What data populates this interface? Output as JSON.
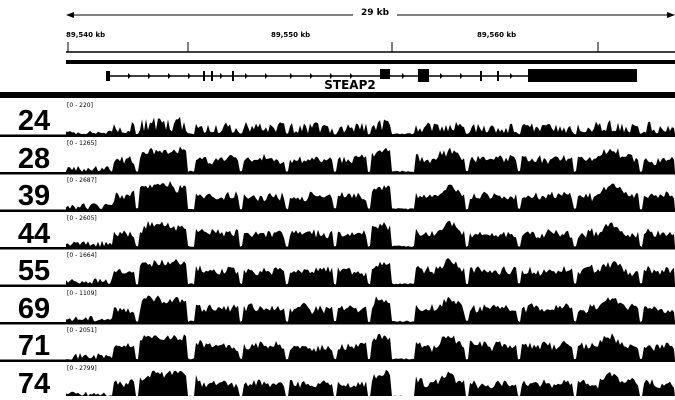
{
  "ruler": {
    "span_label": "29 kb",
    "ticks": [
      "89,540 kb",
      "89,550 kb",
      "89,560 kb"
    ]
  },
  "gene": {
    "name": "STEAP2"
  },
  "tracks": [
    {
      "label": "24",
      "range": "[0 - 220]",
      "seed": 24,
      "density": 0.55
    },
    {
      "label": "28",
      "range": "[0 - 1265]",
      "seed": 28,
      "density": 0.85
    },
    {
      "label": "39",
      "range": "[0 - 2687]",
      "seed": 39,
      "density": 0.9
    },
    {
      "label": "44",
      "range": "[0 - 2605]",
      "seed": 44,
      "density": 0.9
    },
    {
      "label": "55",
      "range": "[0 - 1664]",
      "seed": 55,
      "density": 0.9
    },
    {
      "label": "69",
      "range": "[0 - 1109]",
      "seed": 69,
      "density": 0.9
    },
    {
      "label": "71",
      "range": "[0 - 2051]",
      "seed": 71,
      "density": 0.9
    },
    {
      "label": "74",
      "range": "[0 - 2799]",
      "seed": 74,
      "density": 0.9
    }
  ],
  "colors": {
    "signal": "#000000",
    "background": "#ffffff"
  }
}
